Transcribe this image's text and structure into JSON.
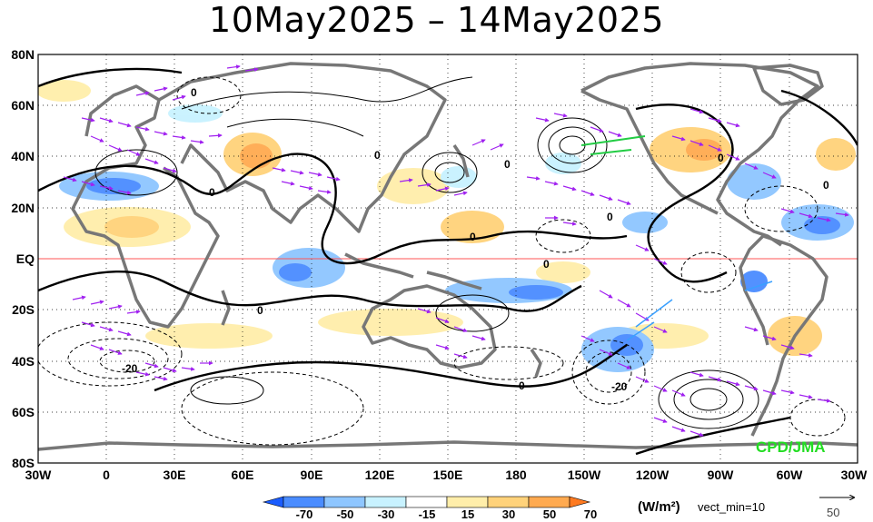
{
  "title": "10May2025 – 14May2025",
  "map": {
    "lat_labels": [
      "80N",
      "60N",
      "40N",
      "20N",
      "EQ",
      "20S",
      "40S",
      "60S",
      "80S"
    ],
    "lon_labels": [
      "30W",
      "0",
      "30E",
      "60E",
      "90E",
      "120E",
      "150E",
      "180",
      "150W",
      "120W",
      "90W",
      "60W",
      "30W"
    ],
    "credit": "CPD/JMA",
    "contour_labels": [
      "0",
      "0",
      "0",
      "0",
      "0",
      "0",
      "0",
      "0",
      "0",
      "0",
      "0",
      "-20",
      "-20"
    ]
  },
  "colorbar": {
    "unit": "(W/m²)",
    "vector_note": "vect_min=10",
    "tick_labels": [
      "-70",
      "-50",
      "-30",
      "-15",
      "15",
      "30",
      "50",
      "70"
    ],
    "colors": [
      "#1a5cff",
      "#4a8cff",
      "#8ec6ff",
      "#c8f2ff",
      "#ffffff",
      "#ffeeaa",
      "#ffd27a",
      "#ffaa50",
      "#ff7a20"
    ],
    "ref_vector_label": "50"
  },
  "styles": {
    "vector_color": "#a020f0",
    "coast_color": "#777777",
    "equator_color": "#ff5555",
    "credit_color": "#22dd22"
  }
}
